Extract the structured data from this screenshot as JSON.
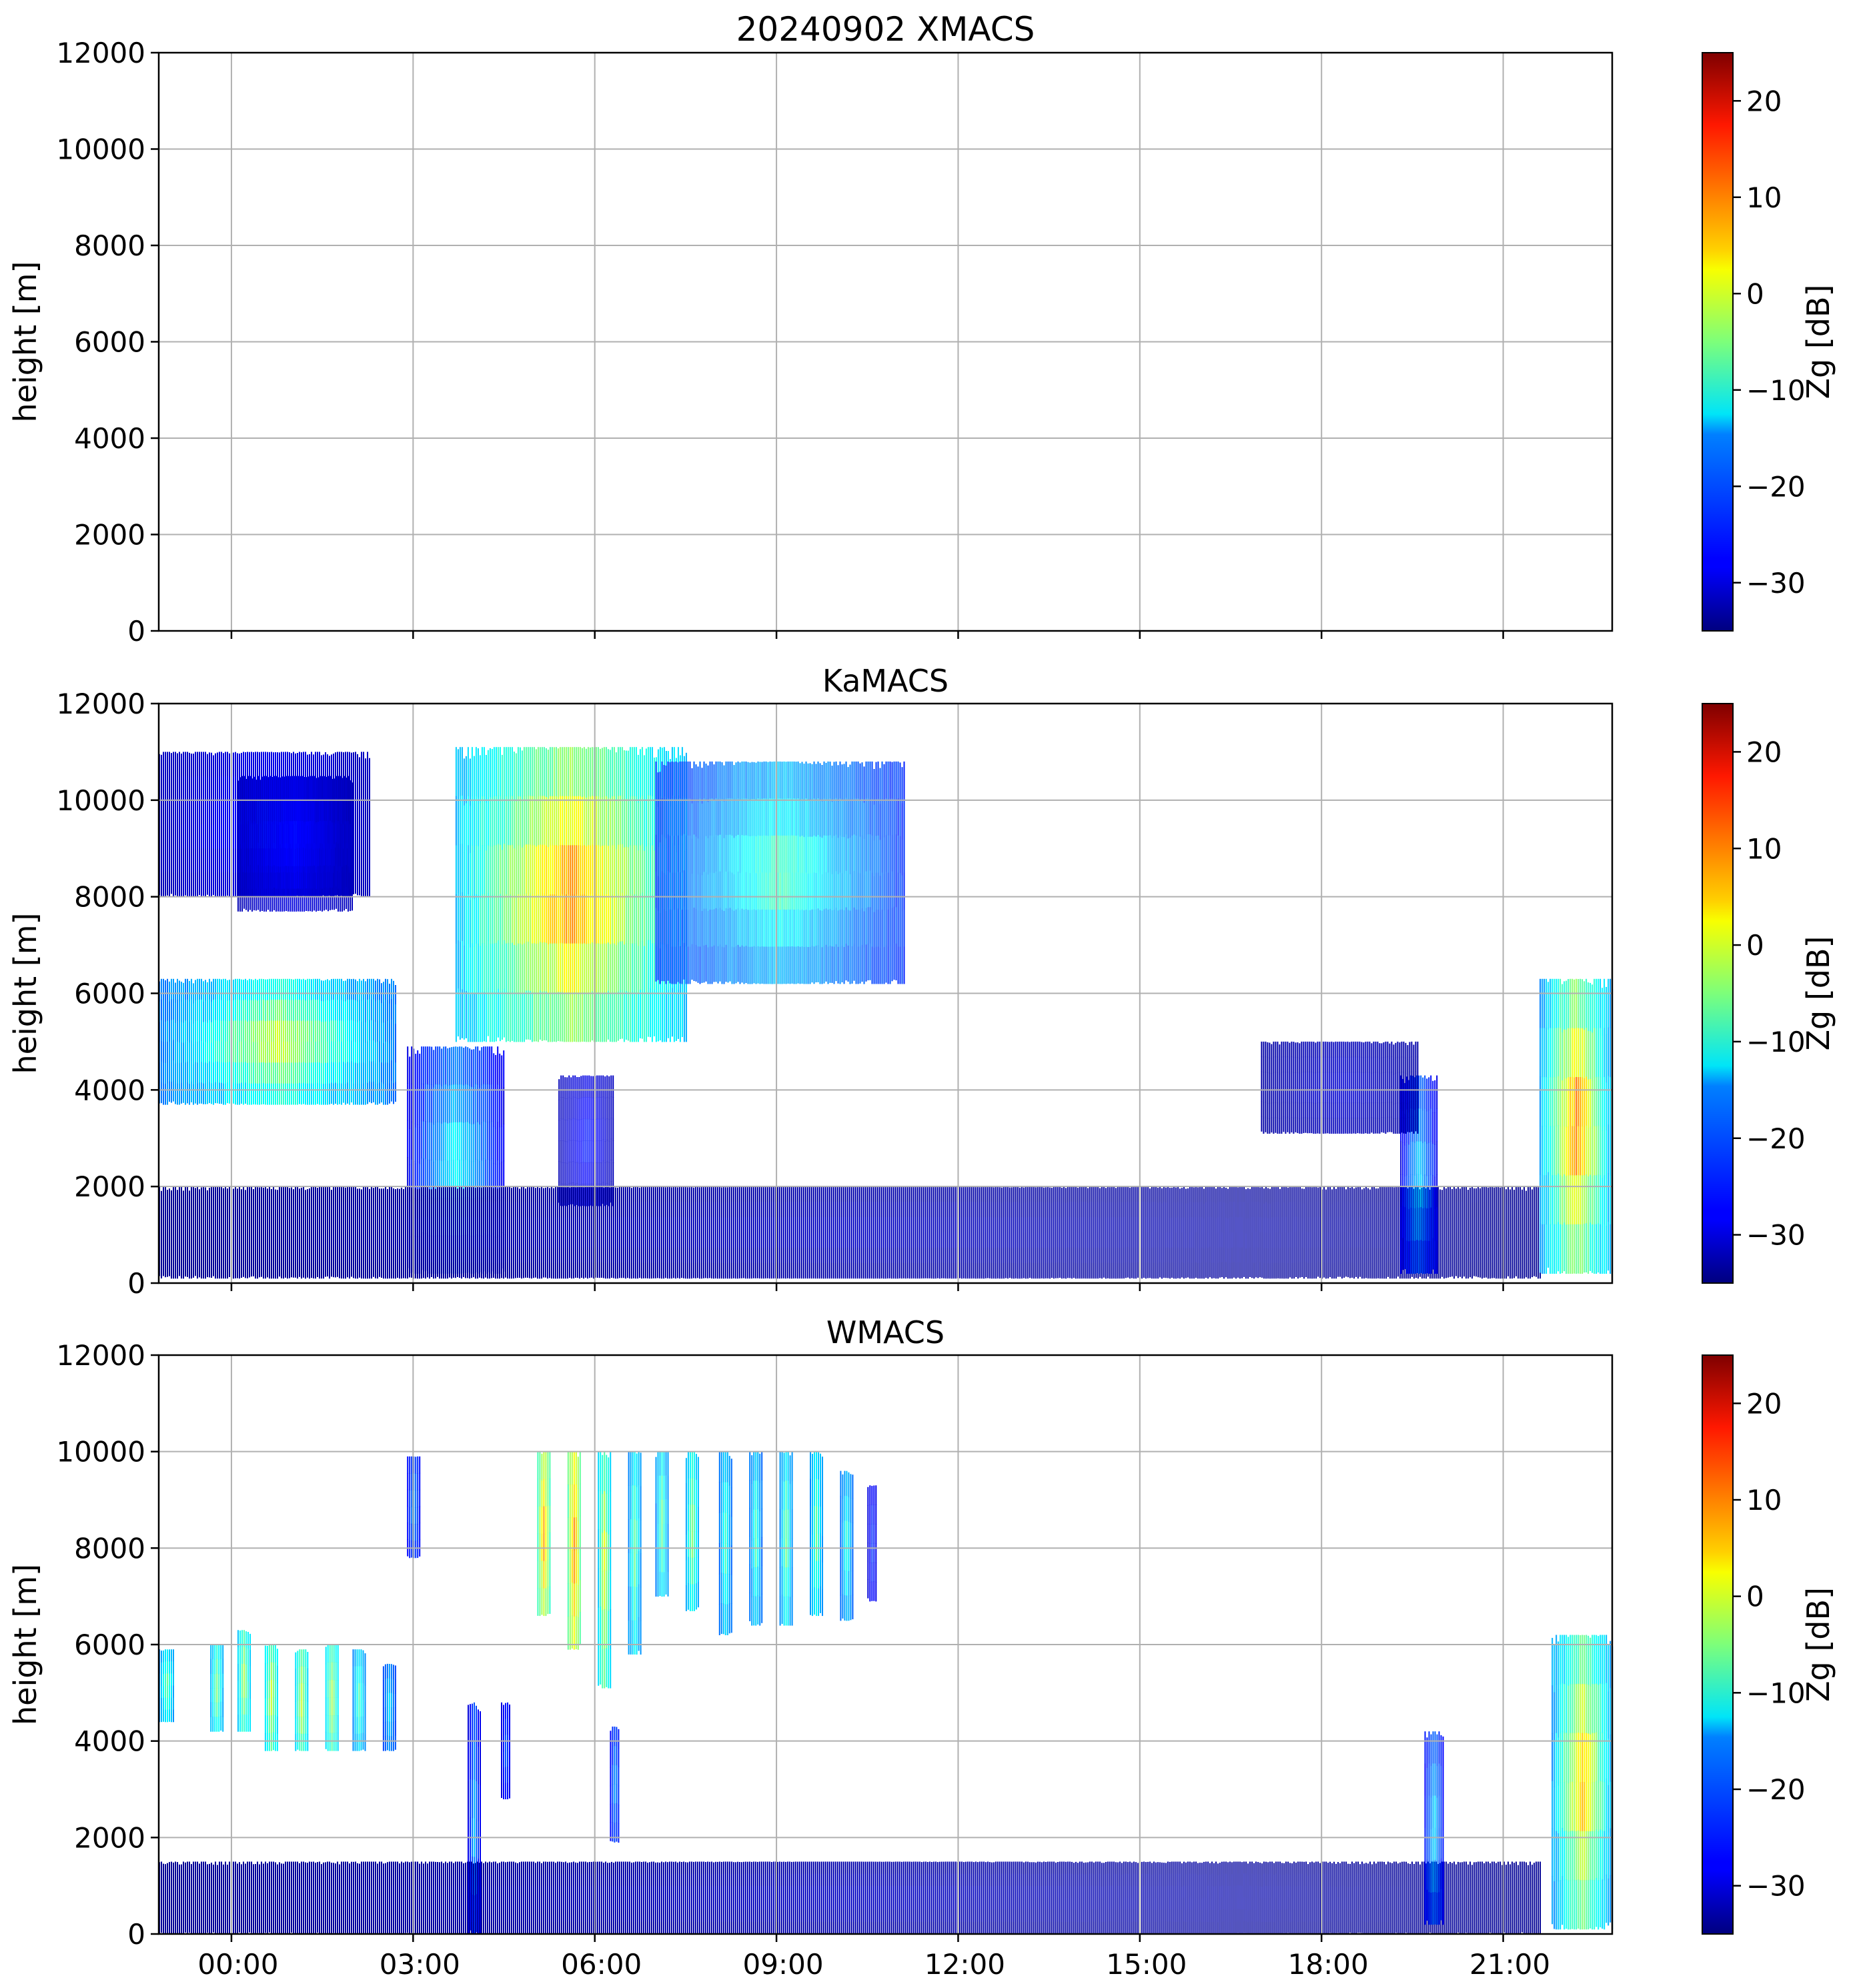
{
  "chart_data": [
    {
      "type": "heatmap",
      "title": "20240902 XMACS",
      "xlabel": "",
      "ylabel": "height [m]",
      "ylim": [
        0,
        12000
      ],
      "yticks": [
        0,
        2000,
        4000,
        6000,
        8000,
        10000,
        12000
      ],
      "xlim_hours": [
        -1.2,
        22.8
      ],
      "xticks": [
        {
          "value": 0,
          "label": "00:00"
        },
        {
          "value": 3,
          "label": "03:00"
        },
        {
          "value": 6,
          "label": "06:00"
        },
        {
          "value": 9,
          "label": "09:00"
        },
        {
          "value": 12,
          "label": "12:00"
        },
        {
          "value": 15,
          "label": "15:00"
        },
        {
          "value": 18,
          "label": "18:00"
        },
        {
          "value": 21,
          "label": "21:00"
        }
      ],
      "show_xtick_labels": false,
      "grid": true,
      "colorbar": {
        "label": "Zg [dB]",
        "range": [
          -35,
          25
        ],
        "ticks": [
          -30,
          -20,
          -10,
          0,
          10,
          20
        ],
        "colormap": "jet"
      },
      "echoes": []
    },
    {
      "type": "heatmap",
      "title": "KaMACS",
      "xlabel": "",
      "ylabel": "height [m]",
      "ylim": [
        0,
        12000
      ],
      "yticks": [
        0,
        2000,
        4000,
        6000,
        8000,
        10000,
        12000
      ],
      "xlim_hours": [
        -1.2,
        22.8
      ],
      "xticks": [
        {
          "value": 0,
          "label": "00:00"
        },
        {
          "value": 3,
          "label": "03:00"
        },
        {
          "value": 6,
          "label": "06:00"
        },
        {
          "value": 9,
          "label": "09:00"
        },
        {
          "value": 12,
          "label": "12:00"
        },
        {
          "value": 15,
          "label": "15:00"
        },
        {
          "value": 18,
          "label": "18:00"
        },
        {
          "value": 21,
          "label": "21:00"
        }
      ],
      "show_xtick_labels": false,
      "grid": true,
      "colorbar": {
        "label": "Zg [dB]",
        "range": [
          -35,
          25
        ],
        "ticks": [
          -30,
          -20,
          -10,
          0,
          10,
          20
        ],
        "colormap": "jet"
      },
      "echoes": [
        {
          "name": "upper-cirrus-left",
          "x0": -1.2,
          "x1": 2.3,
          "y0": 8000,
          "y1": 11000,
          "dbz_edge": -32,
          "dbz_core": -26
        },
        {
          "name": "upper-cirrus-2",
          "x0": 0.1,
          "x1": 2.0,
          "y0": 7700,
          "y1": 10500,
          "dbz_edge": -32,
          "dbz_core": -27
        },
        {
          "name": "midlevel-layer",
          "x0": -1.2,
          "x1": 2.7,
          "y0": 3700,
          "y1": 6300,
          "dbz_edge": -22,
          "dbz_core": 0
        },
        {
          "name": "convective-column-0330",
          "x0": 2.9,
          "x1": 4.5,
          "y0": 200,
          "y1": 4900,
          "dbz_edge": -30,
          "dbz_core": -12
        },
        {
          "name": "upper-cloud-main",
          "x0": 3.7,
          "x1": 7.5,
          "y0": 5000,
          "y1": 11100,
          "dbz_edge": -18,
          "dbz_core": 9
        },
        {
          "name": "upper-cloud-tail",
          "x0": 7.0,
          "x1": 11.1,
          "y0": 6200,
          "y1": 10800,
          "dbz_edge": -26,
          "dbz_core": -8
        },
        {
          "name": "column-0630",
          "x0": 5.4,
          "x1": 6.3,
          "y0": 1600,
          "y1": 4300,
          "dbz_edge": -32,
          "dbz_core": -26
        },
        {
          "name": "boundary-layer",
          "x0": -1.2,
          "x1": 21.6,
          "y0": 100,
          "y1": 2000,
          "dbz_edge": -34,
          "dbz_core": -31
        },
        {
          "name": "cell-1930",
          "x0": 19.3,
          "x1": 19.9,
          "y0": 200,
          "y1": 4300,
          "dbz_edge": -30,
          "dbz_core": -14
        },
        {
          "name": "cloud-2000",
          "x0": 17.0,
          "x1": 19.6,
          "y0": 3100,
          "y1": 5000,
          "dbz_edge": -33,
          "dbz_core": -30
        },
        {
          "name": "cell-2230",
          "x0": 21.6,
          "x1": 22.8,
          "y0": 200,
          "y1": 6300,
          "dbz_edge": -20,
          "dbz_core": 10
        }
      ]
    },
    {
      "type": "heatmap",
      "title": "WMACS",
      "xlabel": "",
      "ylabel": "height [m]",
      "ylim": [
        0,
        12000
      ],
      "yticks": [
        0,
        2000,
        4000,
        6000,
        8000,
        10000,
        12000
      ],
      "xlim_hours": [
        -1.2,
        22.8
      ],
      "xticks": [
        {
          "value": 0,
          "label": "00:00"
        },
        {
          "value": 3,
          "label": "03:00"
        },
        {
          "value": 6,
          "label": "06:00"
        },
        {
          "value": 9,
          "label": "09:00"
        },
        {
          "value": 12,
          "label": "12:00"
        },
        {
          "value": 15,
          "label": "15:00"
        },
        {
          "value": 18,
          "label": "18:00"
        },
        {
          "value": 21,
          "label": "21:00"
        }
      ],
      "show_xtick_labels": true,
      "grid": true,
      "colorbar": {
        "label": "Zg [dB]",
        "range": [
          -35,
          25
        ],
        "ticks": [
          -30,
          -20,
          -10,
          0,
          10,
          20
        ],
        "colormap": "jet"
      },
      "echoes": [
        {
          "name": "stripe-mid-1",
          "x0": -1.2,
          "x1": -0.95,
          "y0": 4400,
          "y1": 5900,
          "dbz_edge": -20,
          "dbz_core": -6
        },
        {
          "name": "stripe-mid-2",
          "x0": -0.35,
          "x1": -0.15,
          "y0": 4200,
          "y1": 6000,
          "dbz_edge": -18,
          "dbz_core": -4
        },
        {
          "name": "stripe-mid-3",
          "x0": 0.1,
          "x1": 0.3,
          "y0": 4200,
          "y1": 6300,
          "dbz_edge": -16,
          "dbz_core": -2
        },
        {
          "name": "stripe-mid-4",
          "x0": 0.55,
          "x1": 0.75,
          "y0": 3800,
          "y1": 6000,
          "dbz_edge": -15,
          "dbz_core": 0
        },
        {
          "name": "stripe-mid-5",
          "x0": 1.05,
          "x1": 1.25,
          "y0": 3800,
          "y1": 5900,
          "dbz_edge": -15,
          "dbz_core": 0
        },
        {
          "name": "stripe-mid-6",
          "x0": 1.55,
          "x1": 1.75,
          "y0": 3800,
          "y1": 6000,
          "dbz_edge": -15,
          "dbz_core": -2
        },
        {
          "name": "stripe-mid-7",
          "x0": 2.0,
          "x1": 2.2,
          "y0": 3800,
          "y1": 5900,
          "dbz_edge": -20,
          "dbz_core": -8
        },
        {
          "name": "stripe-mid-8",
          "x0": 2.5,
          "x1": 2.7,
          "y0": 3800,
          "y1": 5600,
          "dbz_edge": -24,
          "dbz_core": -14
        },
        {
          "name": "stripe-top-0300",
          "x0": 2.9,
          "x1": 3.1,
          "y0": 7800,
          "y1": 9900,
          "dbz_edge": -28,
          "dbz_core": -18
        },
        {
          "name": "column-0400",
          "x0": 3.9,
          "x1": 4.1,
          "y0": 0,
          "y1": 4800,
          "dbz_edge": -30,
          "dbz_core": -16
        },
        {
          "name": "column-0430",
          "x0": 4.45,
          "x1": 4.6,
          "y0": 2800,
          "y1": 4800,
          "dbz_edge": -30,
          "dbz_core": -22
        },
        {
          "name": "stripe-top-1",
          "x0": 5.05,
          "x1": 5.25,
          "y0": 6600,
          "y1": 10000,
          "dbz_edge": -10,
          "dbz_core": 8
        },
        {
          "name": "stripe-top-2",
          "x0": 5.55,
          "x1": 5.75,
          "y0": 5900,
          "y1": 10000,
          "dbz_edge": -8,
          "dbz_core": 10
        },
        {
          "name": "stripe-top-3",
          "x0": 6.05,
          "x1": 6.25,
          "y0": 5100,
          "y1": 10000,
          "dbz_edge": -16,
          "dbz_core": 2
        },
        {
          "name": "stripe-top-4",
          "x0": 6.55,
          "x1": 6.75,
          "y0": 5800,
          "y1": 10000,
          "dbz_edge": -20,
          "dbz_core": -6
        },
        {
          "name": "stripe-top-5",
          "x0": 7.0,
          "x1": 7.2,
          "y0": 7000,
          "y1": 10000,
          "dbz_edge": -20,
          "dbz_core": -6
        },
        {
          "name": "stripe-top-6",
          "x0": 7.5,
          "x1": 7.7,
          "y0": 6700,
          "y1": 10000,
          "dbz_edge": -18,
          "dbz_core": -4
        },
        {
          "name": "stripe-top-7",
          "x0": 8.05,
          "x1": 8.25,
          "y0": 6200,
          "y1": 10000,
          "dbz_edge": -22,
          "dbz_core": -8
        },
        {
          "name": "stripe-top-8",
          "x0": 8.55,
          "x1": 8.75,
          "y0": 6400,
          "y1": 10000,
          "dbz_edge": -22,
          "dbz_core": -8
        },
        {
          "name": "stripe-top-9",
          "x0": 9.05,
          "x1": 9.25,
          "y0": 6400,
          "y1": 10000,
          "dbz_edge": -20,
          "dbz_core": -6
        },
        {
          "name": "stripe-top-10",
          "x0": 9.55,
          "x1": 9.75,
          "y0": 6600,
          "y1": 10000,
          "dbz_edge": -20,
          "dbz_core": -6
        },
        {
          "name": "stripe-top-11",
          "x0": 10.05,
          "x1": 10.25,
          "y0": 6500,
          "y1": 9600,
          "dbz_edge": -22,
          "dbz_core": -10
        },
        {
          "name": "stripe-top-12",
          "x0": 10.5,
          "x1": 10.65,
          "y0": 6900,
          "y1": 9300,
          "dbz_edge": -30,
          "dbz_core": -24
        },
        {
          "name": "column-0640",
          "x0": 6.25,
          "x1": 6.4,
          "y0": 1900,
          "y1": 4300,
          "dbz_edge": -28,
          "dbz_core": -18
        },
        {
          "name": "surface-clutter",
          "x0": -1.2,
          "x1": 21.6,
          "y0": 0,
          "y1": 1500,
          "dbz_edge": -34,
          "dbz_core": -31
        },
        {
          "name": "cell-2030",
          "x0": 19.7,
          "x1": 20.0,
          "y0": 200,
          "y1": 4200,
          "dbz_edge": -28,
          "dbz_core": -14
        },
        {
          "name": "cell-2230",
          "x0": 21.8,
          "x1": 22.8,
          "y0": 100,
          "y1": 6200,
          "dbz_edge": -20,
          "dbz_core": 6
        }
      ]
    }
  ]
}
